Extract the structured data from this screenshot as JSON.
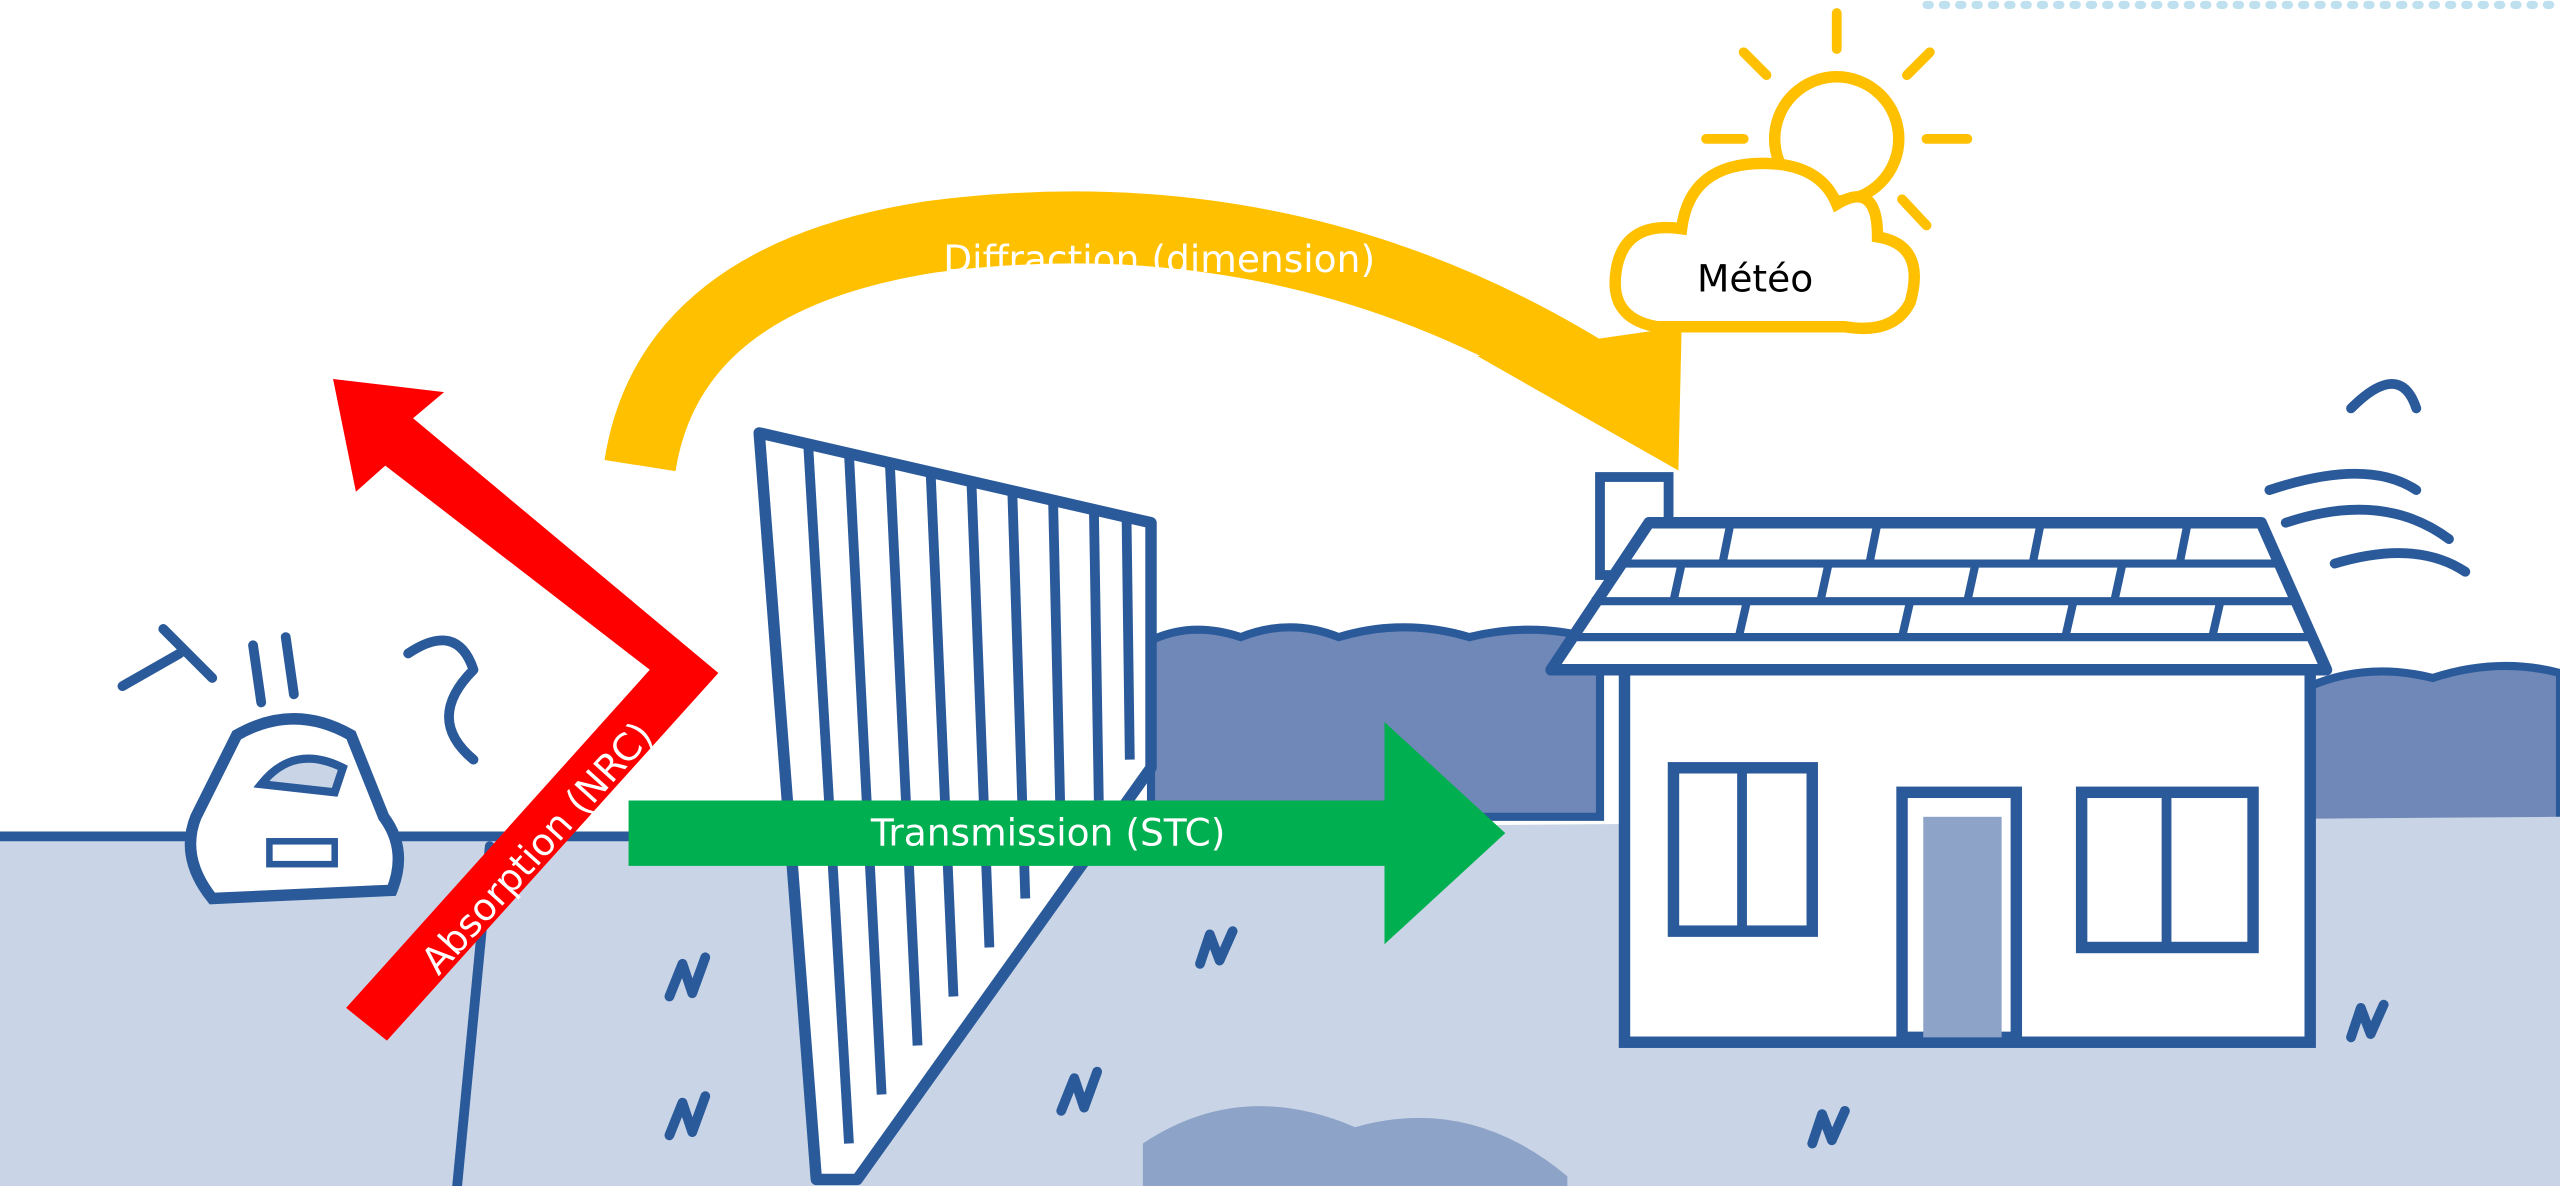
{
  "arrows": {
    "diffraction": {
      "label": "Diffraction (dimension)"
    },
    "absorption": {
      "label": "Absorption (NRC)"
    },
    "transmission": {
      "label": "Transmission (STC)"
    }
  },
  "weather": {
    "label": "Météo"
  }
}
